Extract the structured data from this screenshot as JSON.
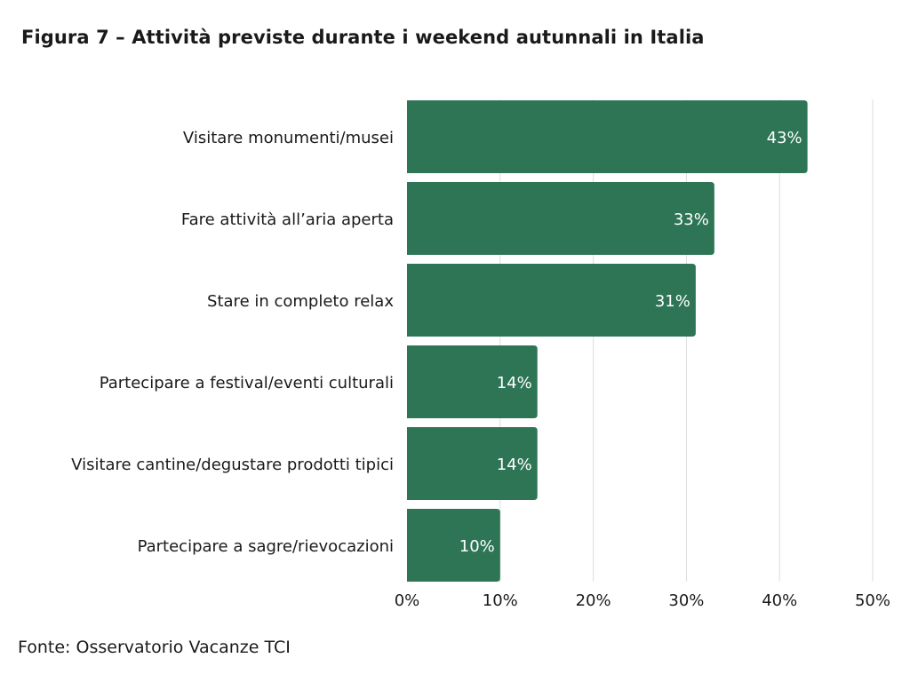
{
  "title": "Figura 7 – Attività previste durante i weekend autunnali in Italia",
  "source": "Fonte: Osservatorio Vacanze TCI",
  "chart_data": {
    "type": "bar",
    "orientation": "horizontal",
    "categories": [
      "Visitare monumenti/musei",
      "Fare attività all’aria aperta",
      "Stare in completo relax",
      "Partecipare a festival/eventi culturali",
      "Visitare cantine/degustare prodotti tipici",
      "Partecipare a sagre/rievocazioni"
    ],
    "values": [
      43,
      33,
      31,
      14,
      14,
      10
    ],
    "value_labels": [
      "43%",
      "33%",
      "31%",
      "14%",
      "14%",
      "10%"
    ],
    "xticks": [
      0,
      10,
      20,
      30,
      40,
      50
    ],
    "xtick_labels": [
      "0%",
      "10%",
      "20%",
      "30%",
      "40%",
      "50%"
    ],
    "xlim": [
      0,
      50
    ],
    "grid": "vertical",
    "bar_color": "#2e7556",
    "grid_color": "#dddddd"
  }
}
